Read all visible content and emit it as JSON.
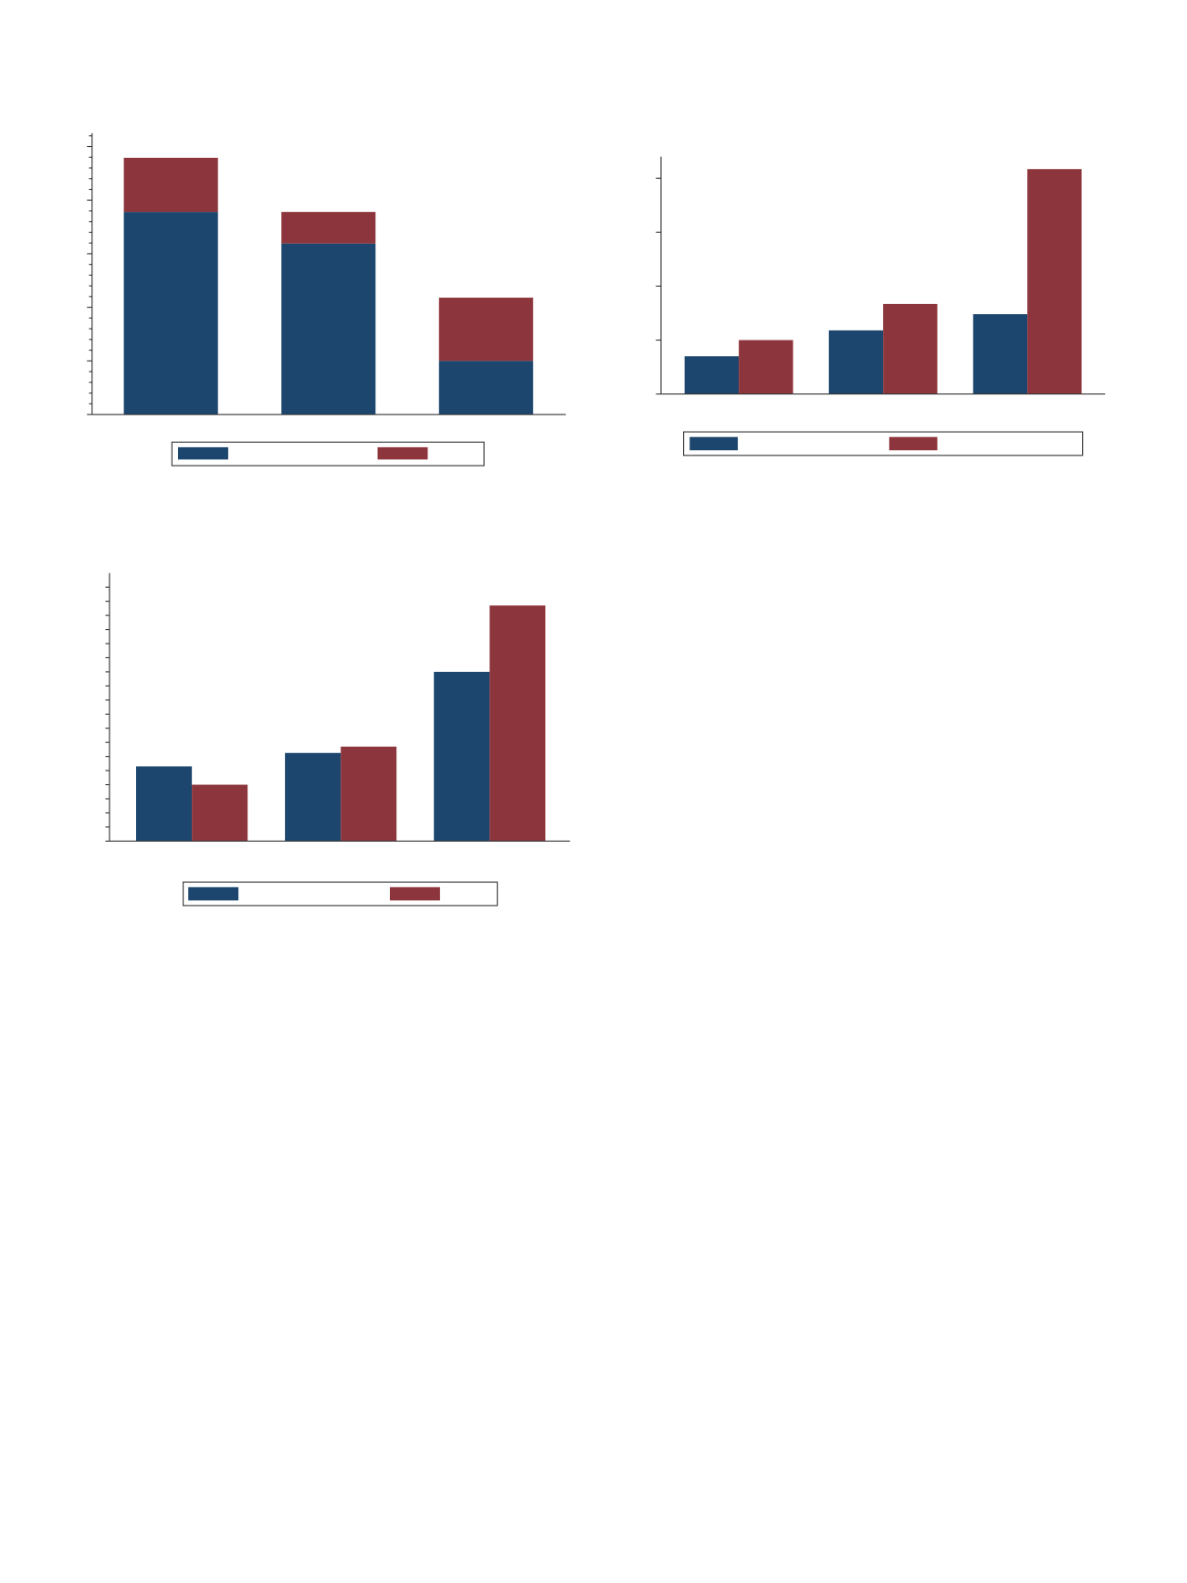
{
  "chart_data": [
    {
      "type": "bar",
      "stacked": true,
      "categories": [
        null,
        null,
        null
      ],
      "series": [
        {
          "color": "#1c466d",
          "values": [
            3.78,
            3.19,
            1.0
          ]
        },
        {
          "color": "#8d353c",
          "values": [
            1.01,
            0.59,
            1.18
          ]
        }
      ],
      "ylim": [
        0,
        5.25
      ],
      "yticks": [
        0,
        0.2,
        0.4,
        0.6,
        0.8,
        1,
        1.2,
        1.4,
        1.6,
        1.8,
        2,
        2.2,
        2.4,
        2.6,
        2.8,
        3,
        3.2,
        3.4,
        3.6,
        3.8,
        4,
        4.2,
        4.4,
        4.6,
        4.8,
        5,
        5.2
      ],
      "legend": "bottom"
    },
    {
      "type": "bar",
      "stacked": false,
      "categories": [
        null,
        null,
        null
      ],
      "series": [
        {
          "color": "#1c466d",
          "values": [
            0.7,
            1.18,
            1.48
          ]
        },
        {
          "color": "#8d353c",
          "values": [
            1.0,
            1.67,
            4.17
          ]
        }
      ],
      "ylim": [
        0,
        4.4
      ],
      "yticks": [
        0,
        1,
        2,
        3,
        4
      ],
      "legend": "bottom"
    },
    {
      "type": "bar",
      "stacked": false,
      "categories": [
        null,
        null,
        null
      ],
      "series": [
        {
          "color": "#1c466d",
          "values": [
            5.3,
            6.25,
            12.0
          ]
        },
        {
          "color": "#8d353c",
          "values": [
            4.0,
            6.7,
            16.7
          ]
        }
      ],
      "ylim": [
        0,
        19
      ],
      "yticks": [
        0,
        1,
        2,
        3,
        4,
        5,
        6,
        7,
        8,
        9,
        10,
        11,
        12,
        13,
        14,
        15,
        16,
        17,
        18
      ],
      "legend": "bottom"
    }
  ]
}
